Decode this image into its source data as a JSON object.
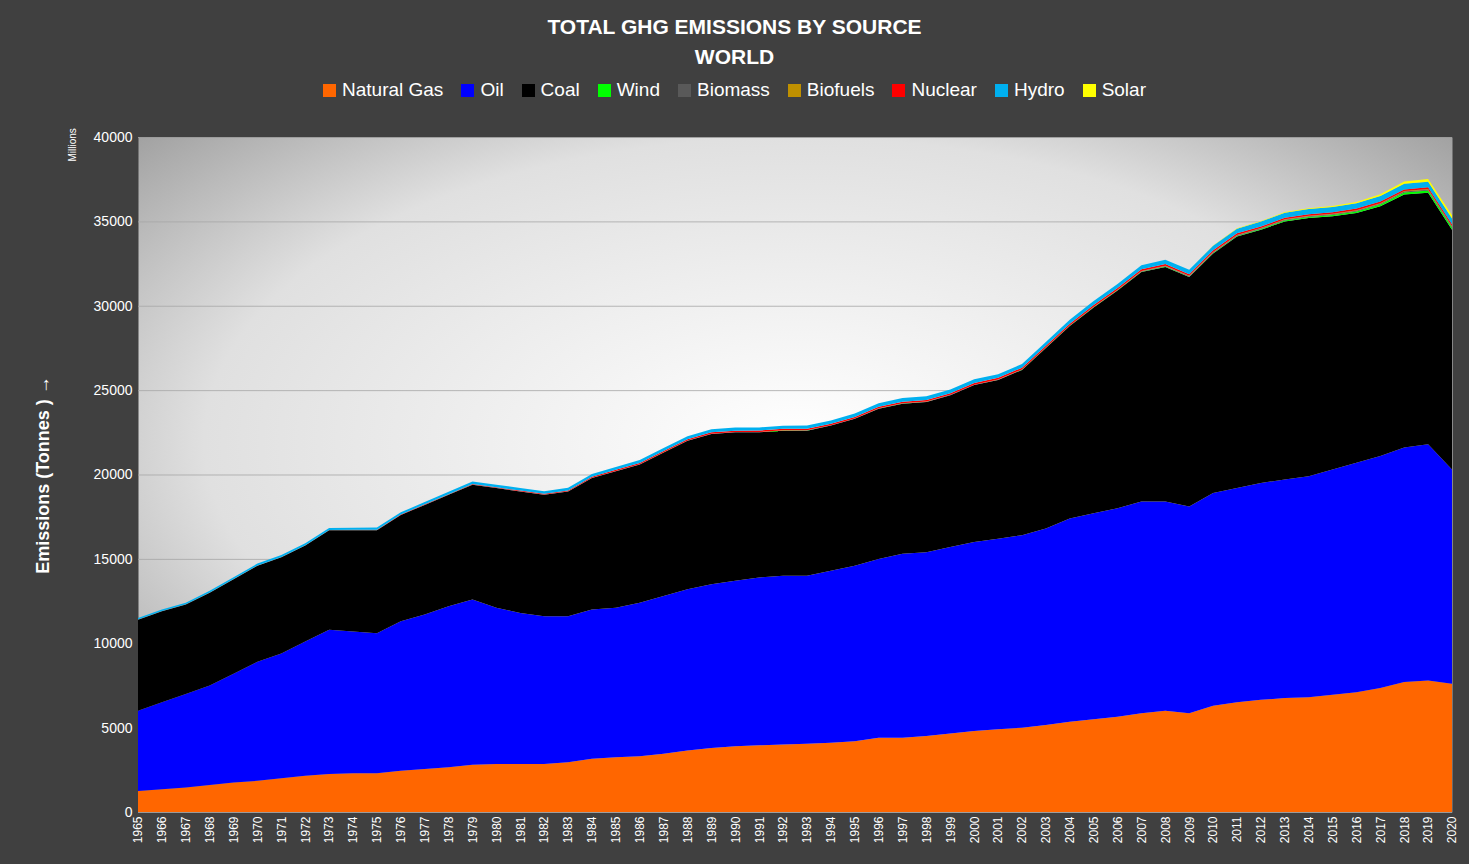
{
  "chart_data": {
    "type": "area",
    "title": "TOTAL GHG EMISSIONS BY SOURCE",
    "subtitle": "WORLD",
    "y_label": "Emissions (Tonnes )",
    "y_unit": "Millions",
    "stacked": true,
    "grid": true,
    "legend": "top",
    "x": [
      1965,
      1966,
      1967,
      1968,
      1969,
      1970,
      1971,
      1972,
      1973,
      1974,
      1975,
      1976,
      1977,
      1978,
      1979,
      1980,
      1981,
      1982,
      1983,
      1984,
      1985,
      1986,
      1987,
      1988,
      1989,
      1990,
      1991,
      1992,
      1993,
      1994,
      1995,
      1996,
      1997,
      1998,
      1999,
      2000,
      2001,
      2002,
      2003,
      2004,
      2005,
      2006,
      2007,
      2008,
      2009,
      2010,
      2011,
      2012,
      2013,
      2014,
      2015,
      2016,
      2017,
      2018,
      2019,
      2020
    ],
    "xlim": [
      1965,
      2020
    ],
    "xticks": [
      1965,
      1966,
      1967,
      1968,
      1969,
      1970,
      1971,
      1972,
      1973,
      1974,
      1975,
      1976,
      1977,
      1978,
      1979,
      1980,
      1981,
      1982,
      1983,
      1984,
      1985,
      1986,
      1987,
      1988,
      1989,
      1990,
      1991,
      1992,
      1993,
      1994,
      1995,
      1996,
      1997,
      1998,
      1999,
      2000,
      2001,
      2002,
      2003,
      2004,
      2005,
      2006,
      2007,
      2008,
      2009,
      2010,
      2011,
      2012,
      2013,
      2014,
      2015,
      2016,
      2017,
      2018,
      2019,
      2020
    ],
    "ylim": [
      0,
      40000
    ],
    "yticks": [
      0,
      5000,
      10000,
      15000,
      20000,
      25000,
      30000,
      35000,
      40000
    ],
    "series": [
      {
        "name": "Natural Gas",
        "color": "#ff6600",
        "values": [
          1250,
          1350,
          1450,
          1600,
          1750,
          1850,
          2000,
          2150,
          2250,
          2300,
          2300,
          2450,
          2550,
          2650,
          2800,
          2850,
          2850,
          2850,
          2950,
          3150,
          3250,
          3300,
          3450,
          3650,
          3800,
          3900,
          3950,
          4000,
          4050,
          4100,
          4200,
          4400,
          4400,
          4500,
          4650,
          4800,
          4900,
          5000,
          5150,
          5350,
          5500,
          5650,
          5850,
          6000,
          5850,
          6300,
          6500,
          6650,
          6750,
          6800,
          6950,
          7100,
          7350,
          7700,
          7800,
          7600
        ]
      },
      {
        "name": "Oil",
        "color": "#0000ff",
        "values": [
          4750,
          5150,
          5550,
          5900,
          6450,
          7050,
          7400,
          7950,
          8550,
          8400,
          8300,
          8850,
          9150,
          9550,
          9800,
          9250,
          8950,
          8750,
          8650,
          8850,
          8850,
          9100,
          9350,
          9550,
          9700,
          9800,
          9950,
          10000,
          9950,
          10200,
          10400,
          10600,
          10900,
          10900,
          11050,
          11200,
          11300,
          11400,
          11650,
          12050,
          12200,
          12350,
          12550,
          12400,
          12250,
          12600,
          12700,
          12850,
          12950,
          13100,
          13350,
          13600,
          13750,
          13900,
          14000,
          12700
        ]
      },
      {
        "name": "Coal",
        "color": "#000000",
        "values": [
          5400,
          5400,
          5300,
          5500,
          5600,
          5700,
          5700,
          5700,
          5900,
          6000,
          6100,
          6300,
          6500,
          6600,
          6800,
          7100,
          7200,
          7200,
          7400,
          7800,
          8100,
          8200,
          8500,
          8800,
          8900,
          8800,
          8600,
          8600,
          8600,
          8600,
          8700,
          8900,
          8900,
          8900,
          9000,
          9300,
          9400,
          9800,
          10700,
          11400,
          12200,
          12900,
          13600,
          13900,
          13600,
          14200,
          14900,
          15000,
          15300,
          15300,
          15000,
          14800,
          14800,
          15000,
          14900,
          14200
        ]
      },
      {
        "name": "Wind",
        "color": "#00ff00",
        "values": [
          0,
          0,
          0,
          0,
          0,
          0,
          0,
          0,
          0,
          0,
          0,
          0,
          0,
          0,
          0,
          0,
          0,
          0,
          0,
          0,
          0,
          0,
          0,
          0,
          0,
          0,
          1,
          1,
          1,
          1,
          1,
          1,
          1,
          2,
          2,
          3,
          4,
          5,
          6,
          8,
          10,
          12,
          16,
          20,
          25,
          32,
          40,
          48,
          57,
          64,
          74,
          87,
          101,
          113,
          127,
          143
        ]
      },
      {
        "name": "Biomass",
        "color": "#595959",
        "values": [
          5,
          5,
          5,
          5,
          5,
          6,
          6,
          6,
          6,
          6,
          7,
          7,
          7,
          8,
          8,
          8,
          9,
          9,
          9,
          10,
          10,
          10,
          11,
          11,
          12,
          12,
          13,
          13,
          14,
          14,
          15,
          15,
          16,
          16,
          17,
          17,
          18,
          19,
          20,
          21,
          23,
          25,
          27,
          29,
          31,
          34,
          36,
          39,
          41,
          44,
          46,
          48,
          50,
          52,
          54,
          56
        ]
      },
      {
        "name": "Biofuels",
        "color": "#bf9000",
        "values": [
          0,
          0,
          0,
          0,
          0,
          0,
          0,
          0,
          0,
          0,
          0,
          0,
          0,
          0,
          1,
          1,
          1,
          2,
          2,
          3,
          3,
          3,
          3,
          3,
          3,
          3,
          3,
          3,
          3,
          3,
          3,
          3,
          3,
          3,
          3,
          4,
          4,
          4,
          5,
          6,
          7,
          9,
          12,
          15,
          17,
          19,
          19,
          20,
          22,
          24,
          25,
          27,
          28,
          30,
          31,
          30
        ]
      },
      {
        "name": "Nuclear",
        "color": "#ff0000",
        "values": [
          1,
          1,
          2,
          2,
          3,
          4,
          6,
          8,
          10,
          13,
          17,
          20,
          24,
          28,
          30,
          33,
          38,
          43,
          48,
          56,
          64,
          70,
          75,
          80,
          82,
          84,
          87,
          88,
          88,
          90,
          92,
          95,
          94,
          95,
          98,
          100,
          102,
          103,
          101,
          104,
          104,
          105,
          103,
          103,
          101,
          104,
          100,
          93,
          93,
          95,
          97,
          97,
          98,
          100,
          103,
          98
        ]
      },
      {
        "name": "Hydro",
        "color": "#00b0f0",
        "values": [
          90,
          95,
          98,
          102,
          106,
          110,
          115,
          118,
          120,
          126,
          130,
          131,
          134,
          140,
          146,
          150,
          152,
          155,
          160,
          166,
          170,
          172,
          174,
          178,
          178,
          182,
          186,
          188,
          194,
          196,
          204,
          208,
          212,
          214,
          216,
          220,
          216,
          220,
          222,
          230,
          236,
          244,
          246,
          256,
          256,
          268,
          274,
          290,
          300,
          306,
          308,
          318,
          322,
          334,
          338,
          346
        ]
      },
      {
        "name": "Solar",
        "color": "#ffff00",
        "values": [
          0,
          0,
          0,
          0,
          0,
          0,
          0,
          0,
          0,
          0,
          0,
          0,
          0,
          0,
          0,
          0,
          0,
          0,
          0,
          0,
          0,
          0,
          0,
          0,
          0,
          0,
          0,
          0,
          0,
          0,
          0,
          0,
          0,
          0,
          0,
          0,
          0,
          0,
          0,
          1,
          1,
          1,
          2,
          3,
          5,
          9,
          17,
          26,
          36,
          46,
          60,
          78,
          102,
          130,
          160,
          195
        ]
      }
    ]
  }
}
